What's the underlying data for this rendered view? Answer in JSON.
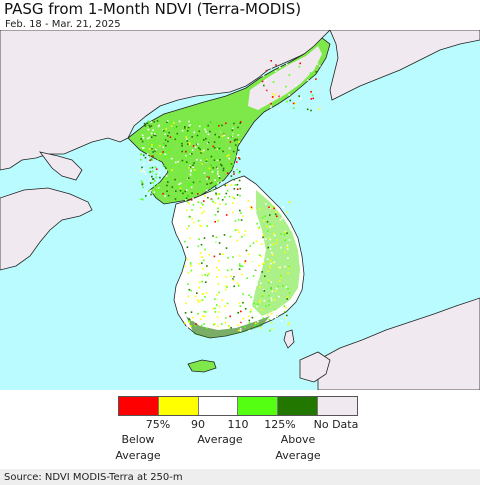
{
  "header": {
    "title": "PASG from 1-Month NDVI (Terra-MODIS)",
    "date_range": "Feb. 18 - Mar. 21, 2025"
  },
  "map": {
    "ocean_color": "#b9fbff",
    "land_nodata_color": "#f0eaf0",
    "outline_color": "#222222"
  },
  "legend": {
    "colors": [
      "#ff0000",
      "#ffff00",
      "#ffffff",
      "#55ff11",
      "#227700",
      "#f0eaf0"
    ],
    "ticks": [
      "75%",
      "90",
      "110",
      "125%",
      "No Data"
    ],
    "categories": [
      {
        "line1": "Below",
        "line2": "Average"
      },
      {
        "line1": "Average",
        "line2": ""
      },
      {
        "line1": "Above",
        "line2": "Average"
      }
    ]
  },
  "footer": {
    "source": "Source: NDVI MODIS-Terra at 250-m"
  }
}
